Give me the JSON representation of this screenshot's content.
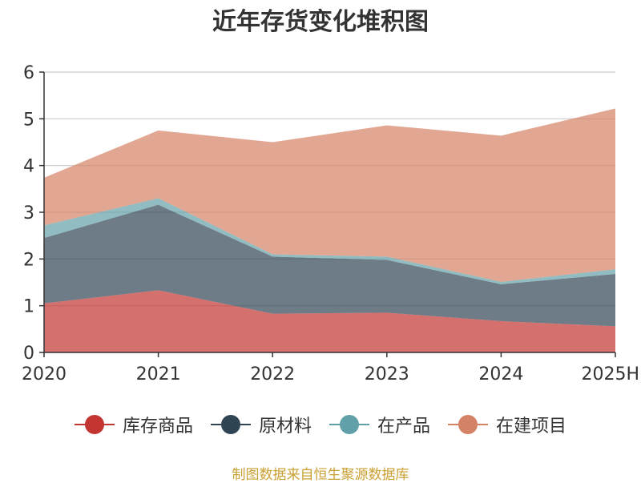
{
  "chart_data": {
    "type": "area",
    "stacked": true,
    "title": "近年存货变化堆积图",
    "source": "制图数据来自恒生聚源数据库",
    "categories": [
      "2020",
      "2021",
      "2022",
      "2023",
      "2024",
      "2025H"
    ],
    "ylim": [
      0,
      6
    ],
    "yticks": [
      0,
      1,
      2,
      3,
      4,
      5,
      6
    ],
    "grid": true,
    "legend_position": "bottom",
    "series": [
      {
        "name": "库存商品",
        "color": "#c23531",
        "values": [
          1.05,
          1.33,
          0.83,
          0.85,
          0.67,
          0.56
        ]
      },
      {
        "name": "原材料",
        "color": "#2f4554",
        "values": [
          1.4,
          1.83,
          1.22,
          1.13,
          0.79,
          1.12
        ]
      },
      {
        "name": "在产品",
        "color": "#61a0a8",
        "values": [
          0.27,
          0.14,
          0.05,
          0.07,
          0.05,
          0.1
        ]
      },
      {
        "name": "在建项目",
        "color": "#d48265",
        "values": [
          1.02,
          1.45,
          2.4,
          2.81,
          3.13,
          3.44
        ]
      }
    ]
  }
}
